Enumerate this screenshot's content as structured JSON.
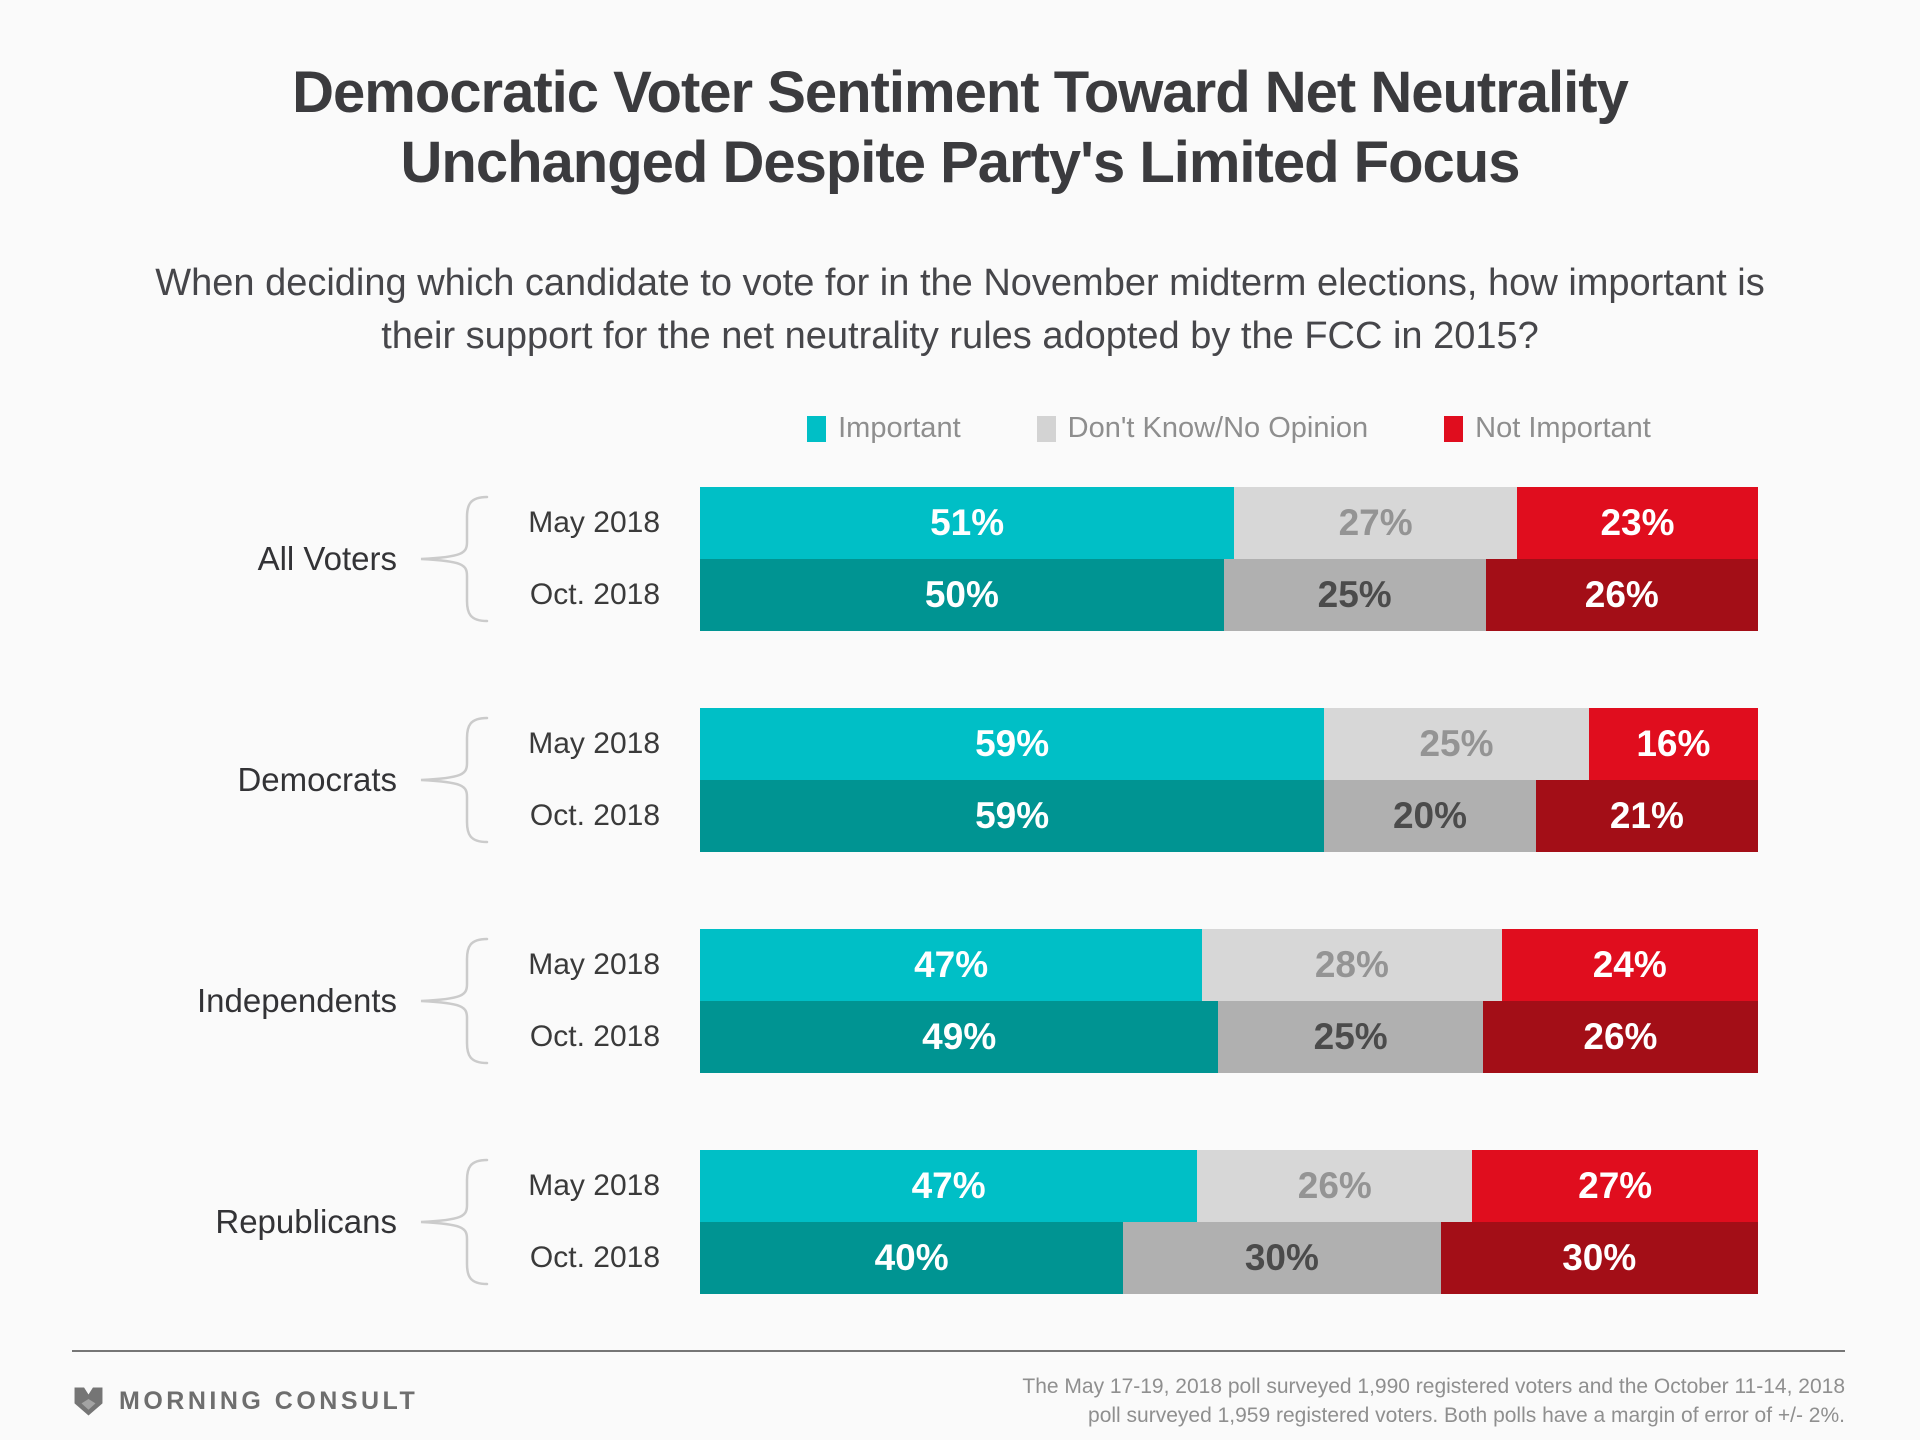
{
  "header": {
    "title_line1": "Democratic Voter Sentiment Toward Net Neutrality",
    "title_line2": "Unchanged Despite Party's Limited Focus",
    "subtitle": "When deciding which candidate to vote for in the November midterm elections, how important is their support for the net neutrality rules adopted by the FCC in 2015?"
  },
  "legend": [
    {
      "label": "Important",
      "color": "#00BFC6"
    },
    {
      "label": "Don't Know/No Opinion",
      "color": "#D3D3D3"
    },
    {
      "label": "Not Important",
      "color": "#E00D1E"
    }
  ],
  "chart_data": {
    "type": "bar",
    "stacked": true,
    "orientation": "horizontal",
    "unit": "%",
    "categories": [
      "Important",
      "Don't Know/No Opinion",
      "Not Important"
    ],
    "legend_position": "top-center",
    "value_label_format": "{v}%",
    "groups": [
      {
        "label": "All Voters",
        "rows": [
          {
            "period": "May 2018",
            "values": [
              51,
              27,
              23
            ]
          },
          {
            "period": "Oct. 2018",
            "values": [
              50,
              25,
              26
            ]
          }
        ]
      },
      {
        "label": "Democrats",
        "rows": [
          {
            "period": "May 2018",
            "values": [
              59,
              25,
              16
            ]
          },
          {
            "period": "Oct. 2018",
            "values": [
              59,
              20,
              21
            ]
          }
        ]
      },
      {
        "label": "Independents",
        "rows": [
          {
            "period": "May 2018",
            "values": [
              47,
              28,
              24
            ]
          },
          {
            "period": "Oct. 2018",
            "values": [
              49,
              25,
              26
            ]
          }
        ]
      },
      {
        "label": "Republicans",
        "rows": [
          {
            "period": "May 2018",
            "values": [
              47,
              26,
              27
            ]
          },
          {
            "period": "Oct. 2018",
            "values": [
              40,
              30,
              30
            ]
          }
        ]
      }
    ],
    "colors": {
      "may_segments": [
        "#00BFC6",
        "#D7D7D7",
        "#E00D1E"
      ],
      "oct_segments": [
        "#009492",
        "#B0B0B0",
        "#A30E17"
      ],
      "may_value_text": [
        "#FFFFFF",
        "#949494",
        "#FFFFFF"
      ],
      "oct_value_text": [
        "#FFFFFF",
        "#4B4B4B",
        "#FFFFFF"
      ]
    }
  },
  "footer": {
    "brand": "MORNING CONSULT",
    "note_line1": "The May 17-19, 2018 poll surveyed 1,990 registered voters and the October 11-14, 2018",
    "note_line2": "poll surveyed 1,959 registered voters. Both polls have a margin of error of +/- 2%."
  }
}
